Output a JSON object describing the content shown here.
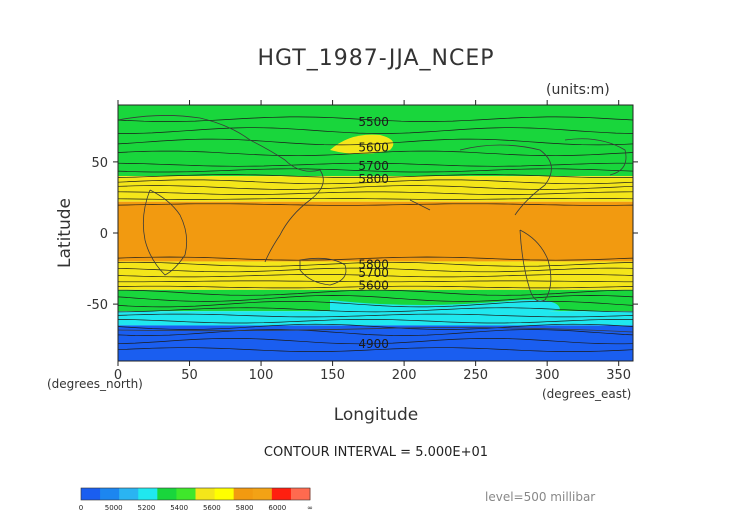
{
  "chart_data": {
    "type": "heatmap",
    "title": "HGT_1987-JJA_NCEP",
    "units_label": "(units:m)",
    "xlabel": "Longitude",
    "ylabel": "Latitude",
    "x_unit_label": "(degrees_east)",
    "y_unit_label": "(degrees_north)",
    "xlim": [
      0,
      360
    ],
    "ylim": [
      -90,
      90
    ],
    "x_ticks": [
      0,
      50,
      100,
      150,
      200,
      250,
      300,
      350
    ],
    "y_ticks": [
      -50,
      0,
      50
    ],
    "contour_interval_text": "CONTOUR INTERVAL = 5.000E+01",
    "level_text": "level=500 millibar",
    "contour_labels": [
      "5500",
      "5600",
      "5700",
      "5800",
      "5800",
      "5700",
      "5600",
      "4900"
    ],
    "colorbar": {
      "colors": [
        "#1a5ef0",
        "#1c86f0",
        "#2ab4f2",
        "#20e8ef",
        "#19d63c",
        "#3fe72b",
        "#f4e61a",
        "#ffff00",
        "#f29a10",
        "#f3a215",
        "#ff1f0f",
        "#ff6a4f"
      ],
      "tick_labels": [
        "0",
        "5000",
        "5200",
        "5400",
        "5600",
        "5800",
        "6000",
        "∞"
      ]
    },
    "bands": [
      {
        "lat_min": 40,
        "lat_max": 90,
        "value_range": "5400-5600",
        "color": "#19d63c"
      },
      {
        "lat_min": 22,
        "lat_max": 40,
        "value_range": "5600-5800",
        "color": "#f4e61a"
      },
      {
        "lat_min": -20,
        "lat_max": 22,
        "value_range": "5800-6000",
        "color": "#f29a10"
      },
      {
        "lat_min": -40,
        "lat_max": -20,
        "value_range": "5600-5800",
        "color": "#f4e61a"
      },
      {
        "lat_min": -55,
        "lat_max": -40,
        "value_range": "5400-5600",
        "color": "#19d63c"
      },
      {
        "lat_min": -65,
        "lat_max": -55,
        "value_range": "5200-5400",
        "color": "#20e8ef"
      },
      {
        "lat_min": -90,
        "lat_max": -65,
        "value_range": "5000-5200",
        "color": "#1a5ef0"
      }
    ],
    "grid": false,
    "legend_position": "bottom-left"
  }
}
